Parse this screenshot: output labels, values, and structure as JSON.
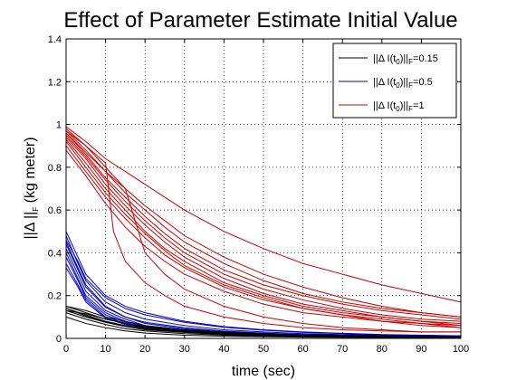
{
  "chart_data": {
    "type": "line",
    "title": "Effect of Parameter Estimate Initial Value",
    "xlabel": "time (sec)",
    "ylabel": "||Δ ||F (kg meter)",
    "xlim": [
      0,
      100
    ],
    "ylim": [
      0,
      1.4
    ],
    "xticks": [
      0,
      10,
      20,
      30,
      40,
      50,
      60,
      70,
      80,
      90,
      100
    ],
    "yticks": [
      0,
      0.2,
      0.4,
      0.6,
      0.8,
      1,
      1.2,
      1.4
    ],
    "grid": true,
    "legend_position": "top-right",
    "legend": [
      {
        "label": "||Δ I(t0)||F=0.15",
        "color": "#000000"
      },
      {
        "label": "||Δ I(t0)||F=0.5",
        "color": "#0000cc"
      },
      {
        "label": "||Δ I(t0)||F=1",
        "color": "#cc0000"
      }
    ],
    "colors": {
      "black": "#000000",
      "blue": "#0000cc",
      "red": "#cc0000"
    },
    "series": [
      {
        "group": "0.15",
        "x": [
          0,
          5,
          10,
          15,
          20,
          30,
          40,
          50,
          60,
          80,
          100
        ],
        "y": [
          0.15,
          0.12,
          0.09,
          0.07,
          0.05,
          0.035,
          0.025,
          0.018,
          0.014,
          0.009,
          0.007
        ]
      },
      {
        "group": "0.15",
        "x": [
          0,
          5,
          10,
          15,
          20,
          30,
          40,
          50,
          60,
          80,
          100
        ],
        "y": [
          0.14,
          0.11,
          0.08,
          0.06,
          0.045,
          0.03,
          0.02,
          0.015,
          0.012,
          0.008,
          0.006
        ]
      },
      {
        "group": "0.15",
        "x": [
          0,
          5,
          10,
          15,
          20,
          30,
          40,
          50,
          60,
          80,
          100
        ],
        "y": [
          0.13,
          0.1,
          0.075,
          0.055,
          0.04,
          0.028,
          0.018,
          0.012,
          0.01,
          0.007,
          0.005
        ]
      },
      {
        "group": "0.15",
        "x": [
          0,
          5,
          10,
          15,
          20,
          30,
          40,
          50,
          60,
          80,
          100
        ],
        "y": [
          0.15,
          0.13,
          0.1,
          0.08,
          0.06,
          0.04,
          0.03,
          0.022,
          0.017,
          0.011,
          0.008
        ]
      },
      {
        "group": "0.15",
        "x": [
          0,
          5,
          10,
          15,
          20,
          30,
          40,
          50,
          60,
          80,
          100
        ],
        "y": [
          0.12,
          0.09,
          0.065,
          0.045,
          0.035,
          0.022,
          0.015,
          0.01,
          0.008,
          0.006,
          0.005
        ]
      },
      {
        "group": "0.15",
        "x": [
          0,
          5,
          10,
          15,
          20,
          30,
          40,
          50,
          60,
          80,
          100
        ],
        "y": [
          0.14,
          0.105,
          0.075,
          0.06,
          0.05,
          0.032,
          0.022,
          0.016,
          0.012,
          0.008,
          0.006
        ]
      },
      {
        "group": "0.15",
        "x": [
          0,
          5,
          10,
          15,
          20,
          30,
          40,
          50,
          60,
          80,
          100
        ],
        "y": [
          0.1,
          0.07,
          0.05,
          0.035,
          0.025,
          0.015,
          0.01,
          0.008,
          0.006,
          0.004,
          0.003
        ]
      },
      {
        "group": "0.15",
        "x": [
          0,
          5,
          10,
          15,
          20,
          30,
          40,
          50,
          60,
          80,
          100
        ],
        "y": [
          0.13,
          0.115,
          0.09,
          0.07,
          0.055,
          0.038,
          0.026,
          0.019,
          0.014,
          0.009,
          0.007
        ]
      },
      {
        "group": "0.5",
        "x": [
          0,
          3,
          5,
          10,
          15,
          20,
          30,
          40,
          50,
          60,
          80,
          100
        ],
        "y": [
          0.5,
          0.38,
          0.3,
          0.2,
          0.15,
          0.12,
          0.08,
          0.055,
          0.04,
          0.03,
          0.018,
          0.012
        ]
      },
      {
        "group": "0.5",
        "x": [
          0,
          3,
          5,
          10,
          15,
          20,
          30,
          40,
          50,
          60,
          80,
          100
        ],
        "y": [
          0.48,
          0.35,
          0.27,
          0.17,
          0.12,
          0.09,
          0.06,
          0.04,
          0.03,
          0.022,
          0.014,
          0.01
        ]
      },
      {
        "group": "0.5",
        "x": [
          0,
          3,
          5,
          10,
          15,
          20,
          30,
          40,
          50,
          60,
          80,
          100
        ],
        "y": [
          0.45,
          0.33,
          0.25,
          0.15,
          0.1,
          0.07,
          0.045,
          0.03,
          0.022,
          0.016,
          0.01,
          0.008
        ]
      },
      {
        "group": "0.5",
        "x": [
          0,
          3,
          5,
          10,
          15,
          20,
          30,
          40,
          50,
          60,
          80,
          100
        ],
        "y": [
          0.42,
          0.3,
          0.22,
          0.13,
          0.09,
          0.06,
          0.04,
          0.028,
          0.02,
          0.015,
          0.01,
          0.007
        ]
      },
      {
        "group": "0.5",
        "x": [
          0,
          3,
          5,
          10,
          15,
          20,
          30,
          40,
          50,
          60,
          80,
          100
        ],
        "y": [
          0.4,
          0.28,
          0.2,
          0.12,
          0.08,
          0.055,
          0.035,
          0.025,
          0.018,
          0.013,
          0.009,
          0.006
        ]
      },
      {
        "group": "0.5",
        "x": [
          0,
          3,
          5,
          10,
          15,
          20,
          30,
          40,
          50,
          60,
          80,
          100
        ],
        "y": [
          0.38,
          0.27,
          0.19,
          0.11,
          0.075,
          0.05,
          0.032,
          0.022,
          0.016,
          0.012,
          0.008,
          0.006
        ]
      },
      {
        "group": "0.5",
        "x": [
          0,
          3,
          5,
          10,
          15,
          20,
          30,
          40,
          50,
          60,
          80,
          100
        ],
        "y": [
          0.35,
          0.25,
          0.18,
          0.1,
          0.07,
          0.05,
          0.03,
          0.02,
          0.015,
          0.011,
          0.007,
          0.005
        ]
      },
      {
        "group": "0.5",
        "x": [
          0,
          3,
          5,
          10,
          15,
          20,
          30,
          40,
          50,
          60,
          80,
          100
        ],
        "y": [
          0.33,
          0.24,
          0.17,
          0.095,
          0.065,
          0.045,
          0.03,
          0.02,
          0.014,
          0.01,
          0.007,
          0.005
        ]
      },
      {
        "group": "0.5",
        "x": [
          0,
          3,
          5,
          10,
          15,
          20,
          30,
          40,
          50,
          60,
          80,
          100
        ],
        "y": [
          0.46,
          0.36,
          0.28,
          0.19,
          0.14,
          0.11,
          0.075,
          0.052,
          0.038,
          0.028,
          0.017,
          0.011
        ]
      },
      {
        "group": "0.5",
        "x": [
          0,
          3,
          5,
          10,
          15,
          20,
          30,
          40,
          50,
          60,
          80,
          100
        ],
        "y": [
          0.44,
          0.32,
          0.24,
          0.145,
          0.1,
          0.075,
          0.05,
          0.034,
          0.025,
          0.018,
          0.012,
          0.008
        ]
      },
      {
        "group": "1",
        "x": [
          0,
          5,
          10,
          15,
          20,
          25,
          30,
          40,
          50,
          60,
          70,
          80,
          90,
          100
        ],
        "y": [
          0.99,
          0.92,
          0.84,
          0.78,
          0.72,
          0.66,
          0.6,
          0.5,
          0.42,
          0.35,
          0.3,
          0.25,
          0.21,
          0.17
        ]
      },
      {
        "group": "1",
        "x": [
          0,
          5,
          10,
          15,
          20,
          25,
          30,
          40,
          50,
          60,
          70,
          80,
          90,
          100
        ],
        "y": [
          0.98,
          0.9,
          0.8,
          0.7,
          0.62,
          0.55,
          0.48,
          0.38,
          0.3,
          0.24,
          0.19,
          0.15,
          0.12,
          0.1
        ]
      },
      {
        "group": "1",
        "x": [
          0,
          5,
          10,
          15,
          20,
          25,
          30,
          40,
          50,
          60,
          70,
          80,
          90,
          100
        ],
        "y": [
          0.97,
          0.88,
          0.78,
          0.68,
          0.6,
          0.52,
          0.45,
          0.35,
          0.27,
          0.21,
          0.17,
          0.14,
          0.12,
          0.1
        ]
      },
      {
        "group": "1",
        "x": [
          0,
          5,
          10,
          15,
          20,
          25,
          30,
          40,
          50,
          60,
          70,
          80,
          90,
          100
        ],
        "y": [
          0.96,
          0.86,
          0.75,
          0.66,
          0.57,
          0.49,
          0.42,
          0.32,
          0.25,
          0.2,
          0.16,
          0.13,
          0.11,
          0.09
        ]
      },
      {
        "group": "1",
        "x": [
          0,
          5,
          10,
          15,
          20,
          25,
          30,
          40,
          50,
          60,
          70,
          80,
          90,
          100
        ],
        "y": [
          0.95,
          0.85,
          0.74,
          0.64,
          0.55,
          0.47,
          0.4,
          0.3,
          0.23,
          0.18,
          0.14,
          0.11,
          0.09,
          0.08
        ]
      },
      {
        "group": "1",
        "x": [
          0,
          5,
          10,
          15,
          20,
          25,
          30,
          40,
          50,
          60,
          70,
          80,
          90,
          100
        ],
        "y": [
          0.94,
          0.84,
          0.72,
          0.62,
          0.53,
          0.45,
          0.38,
          0.28,
          0.21,
          0.16,
          0.13,
          0.1,
          0.08,
          0.07
        ]
      },
      {
        "group": "1",
        "x": [
          0,
          5,
          10,
          15,
          20,
          25,
          30,
          40,
          50,
          60,
          70,
          80,
          90,
          100
        ],
        "y": [
          0.93,
          0.82,
          0.7,
          0.6,
          0.5,
          0.42,
          0.36,
          0.26,
          0.2,
          0.15,
          0.12,
          0.1,
          0.08,
          0.06
        ]
      },
      {
        "group": "1",
        "x": [
          0,
          5,
          10,
          15,
          20,
          25,
          30,
          40,
          50,
          60,
          70,
          80,
          90,
          100
        ],
        "y": [
          0.92,
          0.8,
          0.68,
          0.58,
          0.49,
          0.41,
          0.34,
          0.25,
          0.19,
          0.14,
          0.11,
          0.09,
          0.07,
          0.06
        ]
      },
      {
        "group": "1",
        "x": [
          0,
          5,
          10,
          15,
          20,
          25,
          30,
          40,
          50,
          60,
          70,
          80,
          90,
          100
        ],
        "y": [
          0.9,
          0.78,
          0.66,
          0.56,
          0.47,
          0.39,
          0.33,
          0.24,
          0.18,
          0.14,
          0.11,
          0.08,
          0.07,
          0.05
        ]
      },
      {
        "group": "1",
        "x": [
          0,
          5,
          10,
          15,
          20,
          25,
          30,
          40,
          50,
          60,
          70,
          80,
          90,
          100
        ],
        "y": [
          0.88,
          0.76,
          0.63,
          0.52,
          0.43,
          0.36,
          0.3,
          0.22,
          0.16,
          0.12,
          0.1,
          0.08,
          0.06,
          0.05
        ]
      },
      {
        "group": "1",
        "x": [
          0,
          5,
          10,
          12,
          15,
          20,
          25,
          30,
          40,
          50,
          60,
          70,
          80,
          90,
          100
        ],
        "y": [
          0.97,
          0.9,
          0.82,
          0.5,
          0.36,
          0.26,
          0.2,
          0.15,
          0.1,
          0.07,
          0.05,
          0.04,
          0.035,
          0.03,
          0.03
        ]
      },
      {
        "group": "1",
        "x": [
          0,
          5,
          10,
          15,
          18,
          20,
          25,
          30,
          40,
          50,
          60,
          70,
          80,
          90,
          100
        ],
        "y": [
          0.96,
          0.87,
          0.78,
          0.7,
          0.52,
          0.4,
          0.3,
          0.23,
          0.15,
          0.1,
          0.07,
          0.05,
          0.04,
          0.03,
          0.03
        ]
      }
    ]
  }
}
